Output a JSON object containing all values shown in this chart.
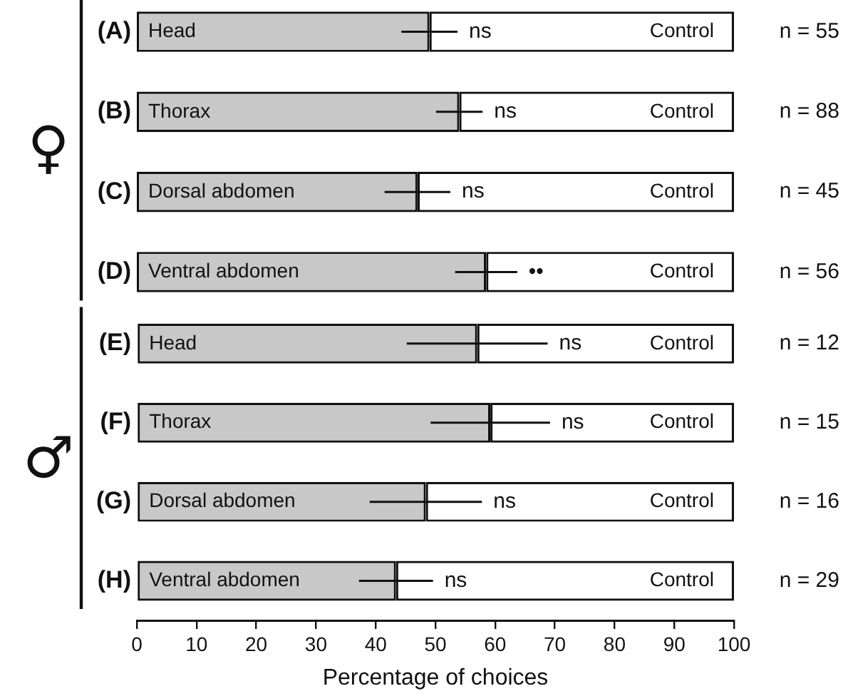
{
  "chart_data": [
    {
      "type": "bar",
      "orientation": "horizontal",
      "stacked": true,
      "ylabel": "♀",
      "categories": [
        "(A)",
        "(B)",
        "(C)",
        "(D)"
      ],
      "series": [
        {
          "color": "#c8c8c8",
          "values": [
            49,
            54,
            47,
            58.5
          ],
          "errors": [
            4.7,
            3.9,
            5.5,
            5.2
          ],
          "value_labels": [
            "Head",
            "Thorax",
            "Dorsal abdomen",
            "Ventral abdomen"
          ]
        },
        {
          "name": "Control",
          "color": "#ffffff",
          "values": [
            51,
            46,
            53,
            41.5
          ]
        }
      ],
      "xlim": [
        0,
        100
      ],
      "xticks": [
        0,
        10,
        20,
        30,
        40,
        50,
        60,
        70,
        80,
        90,
        100
      ],
      "tick_labels": "y",
      "grid": false,
      "legend": false,
      "annotations": [
        {
          "text": "ns",
          "x": 53.7,
          "y": "(A)"
        },
        {
          "text": "ns",
          "x": 57.9,
          "y": "(B)"
        },
        {
          "text": "ns",
          "x": 52.5,
          "y": "(C)"
        },
        {
          "text": "••",
          "x": 63.7,
          "y": "(D)"
        },
        "n = 55",
        "n = 88",
        "n = 45",
        "n = 56"
      ]
    },
    {
      "type": "bar",
      "orientation": "horizontal",
      "stacked": true,
      "ylabel": "♂",
      "xlabel": "Percentage of choices",
      "categories": [
        "(E)",
        "(F)",
        "(G)",
        "(H)"
      ],
      "series": [
        {
          "color": "#c8c8c8",
          "values": [
            57,
            59.2,
            48.4,
            43.4
          ],
          "errors": [
            11.8,
            10,
            9.4,
            6.2
          ],
          "value_labels": [
            "Head",
            "Thorax",
            "Dorsal abdomen",
            "Ventral abdomen"
          ]
        },
        {
          "name": "Control",
          "color": "#ffffff",
          "values": [
            43,
            40.8,
            51.6,
            56.6
          ]
        }
      ],
      "xlim": [
        0,
        100
      ],
      "xticks": [
        0,
        10,
        20,
        30,
        40,
        50,
        60,
        70,
        80,
        90,
        100
      ],
      "grid": false,
      "legend": false,
      "annotations": [
        {
          "text": "ns",
          "x": 68.8,
          "y": "(E)"
        },
        {
          "text": "ns",
          "x": 69.2,
          "y": "(F)"
        },
        {
          "text": "ns",
          "x": 57.8,
          "y": "(G)"
        },
        {
          "text": "ns",
          "x": 49.6,
          "y": "(H)"
        },
        "n = 12",
        "n = 15",
        "n = 16",
        "n = 29"
      ]
    }
  ]
}
